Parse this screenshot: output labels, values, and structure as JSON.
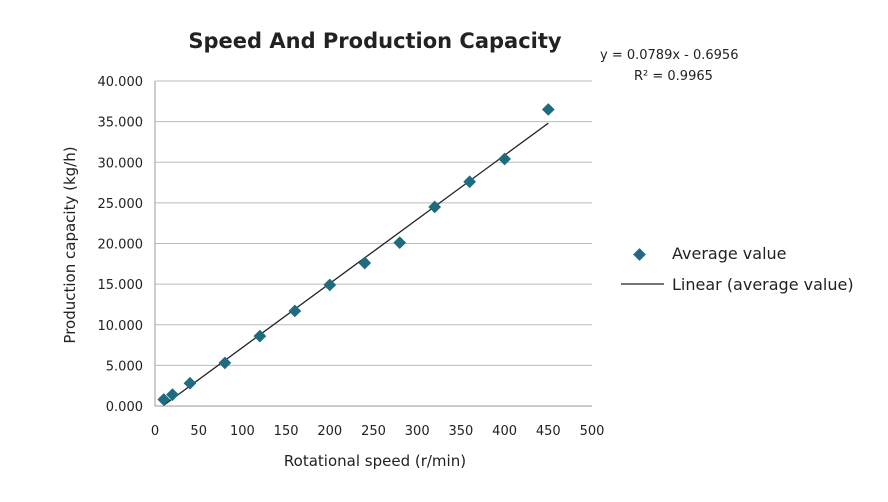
{
  "chart_data": {
    "type": "scatter",
    "title": "Speed And Production Capacity",
    "xlabel": "Rotational speed (r/min)",
    "ylabel": "Production capacity (kg/h)",
    "xlim": [
      0,
      500
    ],
    "ylim": [
      0,
      40
    ],
    "xticks": [
      0,
      50,
      100,
      150,
      200,
      250,
      300,
      350,
      400,
      450,
      500
    ],
    "yticks": [
      "0.000",
      "5.000",
      "10.000",
      "15.000",
      "20.000",
      "25.000",
      "30.000",
      "35.000",
      "40.000"
    ],
    "grid": "horizontal",
    "legend_position": "right",
    "colors": {
      "points": "#1f6b80",
      "trendline": "#222222",
      "grid": "#bbbbbb"
    },
    "series": [
      {
        "name": "Average value",
        "marker": "diamond",
        "x": [
          10,
          20,
          40,
          80,
          120,
          160,
          200,
          240,
          280,
          320,
          360,
          400,
          450
        ],
        "y": [
          0.8,
          1.4,
          2.8,
          5.3,
          8.6,
          11.7,
          14.9,
          17.6,
          20.1,
          24.5,
          27.6,
          30.4,
          36.5
        ]
      }
    ],
    "trendline": {
      "name": "Linear (average value)",
      "slope": 0.0789,
      "intercept": -0.6956,
      "x_range": [
        10,
        450
      ],
      "equation": "y = 0.0789x - 0.6956",
      "r2": "R² = 0.9965"
    }
  }
}
